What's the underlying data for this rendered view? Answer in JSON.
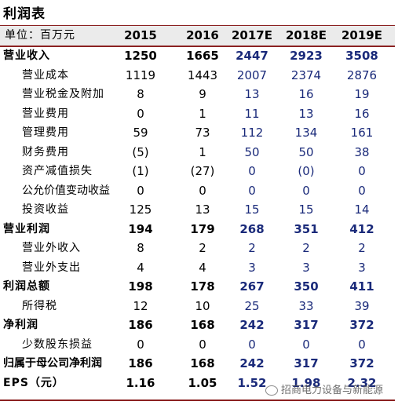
{
  "title": "利润表",
  "header": {
    "unit_label": "单位：百万元",
    "years": [
      "2015",
      "2016",
      "2017E",
      "2018E",
      "2019E"
    ]
  },
  "rows": [
    {
      "label": "营业收入",
      "bold": true,
      "level": 0,
      "values": [
        "1250",
        "1665",
        "2447",
        "2923",
        "3508"
      ]
    },
    {
      "label": "营业成本",
      "bold": false,
      "level": 1,
      "values": [
        "1119",
        "1443",
        "2007",
        "2374",
        "2876"
      ]
    },
    {
      "label": "营业税金及附加",
      "bold": false,
      "level": 1,
      "values": [
        "8",
        "9",
        "13",
        "16",
        "19"
      ]
    },
    {
      "label": "营业费用",
      "bold": false,
      "level": 1,
      "values": [
        "0",
        "1",
        "11",
        "13",
        "16"
      ]
    },
    {
      "label": "管理费用",
      "bold": false,
      "level": 1,
      "values": [
        "59",
        "73",
        "112",
        "134",
        "161"
      ]
    },
    {
      "label": "财务费用",
      "bold": false,
      "level": 1,
      "values": [
        "(5)",
        "1",
        "50",
        "50",
        "38"
      ]
    },
    {
      "label": "资产减值损失",
      "bold": false,
      "level": 1,
      "values": [
        "(1)",
        "(27)",
        "0",
        "(0)",
        "0"
      ]
    },
    {
      "label": "公允价值变动收益",
      "bold": false,
      "level": 1,
      "values": [
        "0",
        "0",
        "0",
        "0",
        "0"
      ]
    },
    {
      "label": "投资收益",
      "bold": false,
      "level": 1,
      "values": [
        "125",
        "13",
        "15",
        "15",
        "14"
      ]
    },
    {
      "label": "营业利润",
      "bold": true,
      "level": 0,
      "values": [
        "194",
        "179",
        "268",
        "351",
        "412"
      ]
    },
    {
      "label": "营业外收入",
      "bold": false,
      "level": 1,
      "values": [
        "8",
        "2",
        "2",
        "2",
        "2"
      ]
    },
    {
      "label": "营业外支出",
      "bold": false,
      "level": 1,
      "values": [
        "4",
        "4",
        "3",
        "3",
        "3"
      ]
    },
    {
      "label": "利润总额",
      "bold": true,
      "level": 0,
      "values": [
        "198",
        "178",
        "267",
        "350",
        "411"
      ]
    },
    {
      "label": "所得税",
      "bold": false,
      "level": 1,
      "values": [
        "12",
        "10",
        "25",
        "33",
        "39"
      ]
    },
    {
      "label": "净利润",
      "bold": true,
      "level": 0,
      "values": [
        "186",
        "168",
        "242",
        "317",
        "372"
      ]
    },
    {
      "label": "少数股东损益",
      "bold": false,
      "level": 1,
      "values": [
        "0",
        "0",
        "0",
        "0",
        "0"
      ]
    },
    {
      "label": "归属于母公司净利润",
      "bold": true,
      "level": 0,
      "values": [
        "186",
        "168",
        "242",
        "317",
        "372"
      ]
    },
    {
      "label": "EPS（元）",
      "bold": true,
      "level": 0,
      "values": [
        "1.16",
        "1.05",
        "1.52",
        "1.98",
        "2.32"
      ]
    }
  ],
  "watermark": "招商电力设备与新能源",
  "accent_color": "#8b2121",
  "forecast_color": "#1a2a7a"
}
